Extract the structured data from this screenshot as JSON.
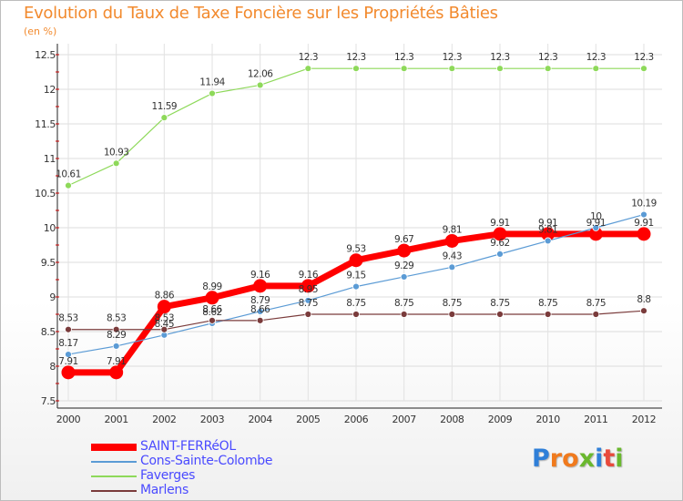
{
  "title": "Evolution du Taux de Taxe Foncière sur les Propriétés Bâties",
  "unit": "(en %)",
  "logo": "Proxiti",
  "logo_colors": [
    "#2f7fd8",
    "#f07a1d",
    "#f07a1d",
    "#6ab82e",
    "#2f7fd8",
    "#e84a3c",
    "#6ab82e"
  ],
  "chart_data": {
    "type": "line",
    "title": "Evolution du Taux de Taxe Foncière sur les Propriétés Bâties",
    "ylabel": "(en %)",
    "xlabel": "",
    "x": [
      "2000",
      "2001",
      "2002",
      "2003",
      "2004",
      "2005",
      "2006",
      "2007",
      "2008",
      "2009",
      "2010",
      "2011",
      "2012"
    ],
    "ylim": [
      7.5,
      12.5
    ],
    "yticks": [
      "7.5",
      "8",
      "8.5",
      "9",
      "9.5",
      "10",
      "10.5",
      "11",
      "11.5",
      "12",
      "12.5"
    ],
    "grid": true,
    "legend": "bottom-left",
    "series": [
      {
        "name": "SAINT-FERRéOL",
        "color": "#ff0000",
        "values": [
          7.91,
          7.91,
          8.86,
          8.99,
          9.16,
          9.16,
          9.53,
          9.67,
          9.81,
          9.91,
          9.91,
          9.91,
          9.91
        ],
        "labels": [
          "7.91",
          "7.91",
          "8.86",
          "8.99",
          "9.16",
          "9.16",
          "9.53",
          "9.67",
          "9.81",
          "9.91",
          "9.91",
          "9.91",
          "9.91"
        ]
      },
      {
        "name": "Cons-Sainte-Colombe",
        "color": "#5b9bd5",
        "values": [
          8.17,
          8.29,
          8.45,
          8.62,
          8.79,
          8.95,
          9.15,
          9.29,
          9.43,
          9.62,
          9.81,
          10,
          10.19
        ],
        "labels": [
          "8.17",
          "8.29",
          "8.45",
          "8.62",
          "8.79",
          "8.95",
          "9.15",
          "9.29",
          "9.43",
          "9.62",
          "9.81",
          "10",
          "10.19"
        ]
      },
      {
        "name": "Faverges",
        "color": "#8ed95a",
        "values": [
          10.61,
          10.93,
          11.59,
          11.94,
          12.06,
          12.3,
          12.3,
          12.3,
          12.3,
          12.3,
          12.3,
          12.3,
          12.3
        ],
        "labels": [
          "10.61",
          "10.93",
          "11.59",
          "11.94",
          "12.06",
          "12.3",
          "12.3",
          "12.3",
          "12.3",
          "12.3",
          "12.3",
          "12.3",
          "12.3"
        ]
      },
      {
        "name": "Marlens",
        "color": "#7a3b3b",
        "values": [
          8.53,
          8.53,
          8.53,
          8.66,
          8.66,
          8.75,
          8.75,
          8.75,
          8.75,
          8.75,
          8.75,
          8.75,
          8.8
        ],
        "labels": [
          "8.53",
          "8.53",
          "8.53",
          "8.66",
          "8.66",
          "8.75",
          "8.75",
          "8.75",
          "8.75",
          "8.75",
          "8.75",
          "8.75",
          "8.8"
        ]
      }
    ]
  }
}
